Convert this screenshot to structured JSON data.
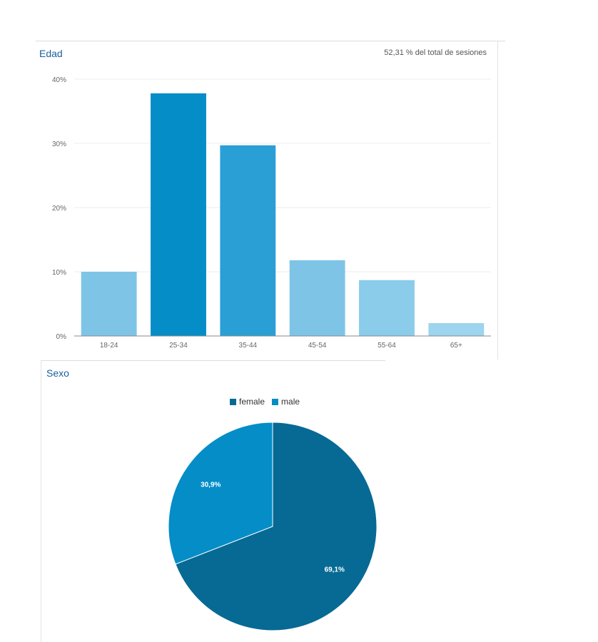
{
  "edad": {
    "title": "Edad",
    "subtitle": "52,31 % del total de sesiones"
  },
  "sexo": {
    "title": "Sexo"
  },
  "chart_data": [
    {
      "type": "bar",
      "title": "Edad",
      "categories": [
        "18-24",
        "25-34",
        "35-44",
        "45-54",
        "55-64",
        "65+"
      ],
      "values": [
        10.0,
        37.8,
        29.7,
        11.8,
        8.7,
        2.0
      ],
      "colors": [
        "#7ec4e7",
        "#058dc7",
        "#2a9fd6",
        "#7ec4e7",
        "#8accea",
        "#9dd4ee"
      ],
      "yticks": [
        "0%",
        "10%",
        "20%",
        "30%",
        "40%"
      ],
      "ylim": [
        0,
        40
      ],
      "grid": true
    },
    {
      "type": "pie",
      "title": "Sexo",
      "labels": [
        "female",
        "male"
      ],
      "values": [
        69.1,
        30.9
      ],
      "value_labels": [
        "69,1%",
        "30,9%"
      ],
      "colors": [
        "#066a94",
        "#058dc7"
      ],
      "legend": "top"
    }
  ]
}
